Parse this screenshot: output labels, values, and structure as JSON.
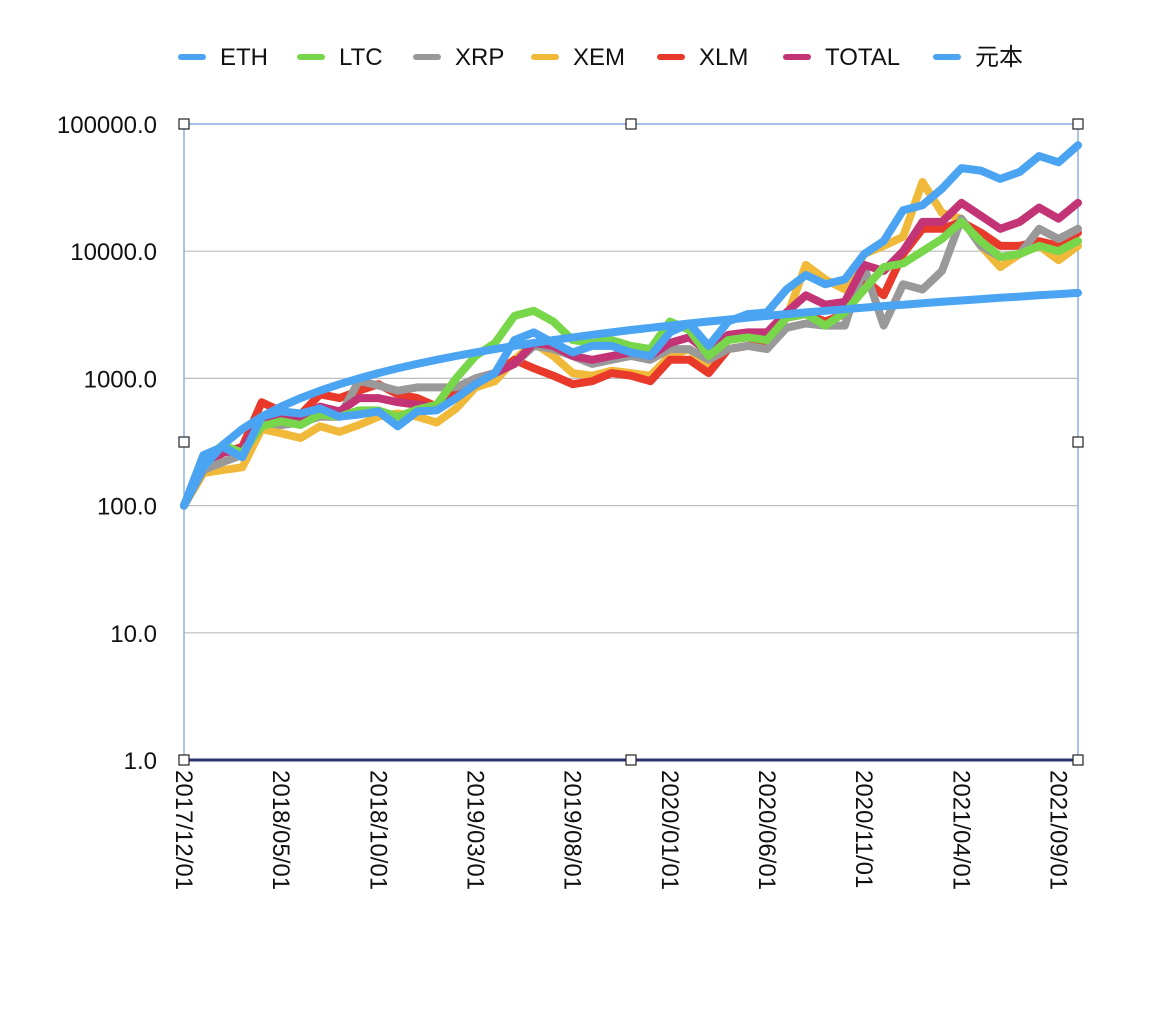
{
  "chart_data": {
    "type": "line",
    "title": "",
    "xlabel": "",
    "ylabel": "",
    "y_scale": "log",
    "ylim": [
      1,
      100000
    ],
    "y_ticks": [
      "1.0",
      "10.0",
      "100.0",
      "1000.0",
      "10000.0",
      "100000.0"
    ],
    "y_tick_values": [
      1,
      10,
      100,
      1000,
      10000,
      100000
    ],
    "grid": "horizontal",
    "legend_position": "top",
    "x_tick_labels": [
      "2017/12/01",
      "2018/05/01",
      "2018/10/01",
      "2019/03/01",
      "2019/08/01",
      "2020/01/01",
      "2020/06/01",
      "2020/11/01",
      "2021/04/01",
      "2021/09/01"
    ],
    "x_tick_indices": [
      0,
      5,
      10,
      15,
      20,
      25,
      30,
      35,
      40,
      45
    ],
    "x": [
      "2017/12",
      "2018/01",
      "2018/02",
      "2018/03",
      "2018/04",
      "2018/05",
      "2018/06",
      "2018/07",
      "2018/08",
      "2018/09",
      "2018/10",
      "2018/11",
      "2018/12",
      "2019/01",
      "2019/02",
      "2019/03",
      "2019/04",
      "2019/05",
      "2019/06",
      "2019/07",
      "2019/08",
      "2019/09",
      "2019/10",
      "2019/11",
      "2019/12",
      "2020/01",
      "2020/02",
      "2020/03",
      "2020/04",
      "2020/05",
      "2020/06",
      "2020/07",
      "2020/08",
      "2020/09",
      "2020/10",
      "2020/11",
      "2020/12",
      "2021/01",
      "2021/02",
      "2021/03",
      "2021/04",
      "2021/05",
      "2021/06",
      "2021/07",
      "2021/08",
      "2021/09",
      "2021/10"
    ],
    "series": [
      {
        "name": "XEM",
        "color": "#f0b93a",
        "values": [
          100,
          180,
          190,
          200,
          400,
          370,
          340,
          420,
          380,
          430,
          500,
          530,
          500,
          450,
          580,
          850,
          950,
          1400,
          1900,
          1500,
          1100,
          1050,
          1150,
          1100,
          1050,
          1500,
          1700,
          1200,
          1700,
          1800,
          1900,
          3000,
          7800,
          6000,
          5000,
          9500,
          11000,
          13000,
          35000,
          20000,
          18000,
          11000,
          7500,
          9500,
          11000,
          8500,
          11000
        ]
      },
      {
        "name": "XLM",
        "color": "#e8392b",
        "values": [
          100,
          200,
          260,
          290,
          650,
          550,
          520,
          750,
          700,
          800,
          900,
          750,
          700,
          600,
          800,
          1000,
          1100,
          1400,
          1200,
          1050,
          900,
          950,
          1100,
          1050,
          950,
          1400,
          1400,
          1100,
          1700,
          1800,
          2000,
          3000,
          3200,
          2800,
          3200,
          6000,
          4500,
          9500,
          15000,
          15000,
          17000,
          14000,
          11000,
          11000,
          12000,
          11000,
          14000
        ]
      },
      {
        "name": "XRP",
        "color": "#999999",
        "values": [
          100,
          190,
          220,
          250,
          450,
          430,
          450,
          500,
          500,
          960,
          880,
          800,
          850,
          850,
          850,
          1000,
          1100,
          1300,
          1800,
          1700,
          1500,
          1300,
          1400,
          1500,
          1400,
          1700,
          1700,
          1400,
          1700,
          1800,
          1700,
          2500,
          2700,
          2600,
          2600,
          7500,
          2600,
          5500,
          5000,
          7000,
          18000,
          11000,
          9000,
          9500,
          15000,
          12500,
          15000
        ]
      },
      {
        "name": "TOTAL",
        "color": "#c23476",
        "values": [
          100,
          220,
          260,
          280,
          500,
          500,
          480,
          600,
          550,
          700,
          700,
          650,
          620,
          600,
          700,
          900,
          1100,
          1300,
          1900,
          1800,
          1500,
          1400,
          1500,
          1600,
          1500,
          1900,
          2100,
          1600,
          2200,
          2300,
          2300,
          3300,
          4500,
          3800,
          4000,
          7800,
          7000,
          10000,
          17000,
          17000,
          24000,
          19000,
          15000,
          17000,
          22000,
          18000,
          24000
        ]
      },
      {
        "name": "LTC",
        "color": "#77d64a",
        "values": [
          100,
          230,
          300,
          260,
          420,
          460,
          430,
          520,
          500,
          560,
          560,
          500,
          570,
          620,
          1000,
          1500,
          1900,
          3100,
          3400,
          2800,
          2000,
          1900,
          2000,
          1800,
          1700,
          2800,
          2400,
          1500,
          2000,
          2100,
          2000,
          3000,
          3200,
          2600,
          3300,
          5000,
          7500,
          8000,
          10000,
          12500,
          17000,
          12000,
          9000,
          9500,
          11000,
          10000,
          12000
        ]
      },
      {
        "name": "ETH",
        "color": "#4aa4f2",
        "values": [
          100,
          250,
          290,
          240,
          500,
          550,
          530,
          580,
          500,
          520,
          550,
          420,
          550,
          560,
          700,
          900,
          1100,
          2000,
          2300,
          1900,
          1600,
          1800,
          1800,
          1600,
          1500,
          2300,
          2700,
          1800,
          2800,
          3200,
          3300,
          5000,
          6500,
          5500,
          6000,
          9500,
          12000,
          21000,
          23000,
          31000,
          45000,
          43000,
          37000,
          42000,
          56000,
          50000,
          68000
        ]
      },
      {
        "name": "元本",
        "color": "#4aa4f2",
        "values": [
          100,
          200,
          300,
          400,
          500,
          600,
          700,
          800,
          900,
          1000,
          1100,
          1200,
          1300,
          1400,
          1500,
          1600,
          1700,
          1800,
          1900,
          2000,
          2100,
          2200,
          2300,
          2400,
          2500,
          2600,
          2700,
          2800,
          2900,
          3000,
          3100,
          3200,
          3300,
          3400,
          3500,
          3600,
          3700,
          3800,
          3900,
          4000,
          4100,
          4200,
          4300,
          4400,
          4500,
          4600,
          4700
        ]
      }
    ],
    "legend": [
      {
        "name": "ETH",
        "color": "#4aa4f2"
      },
      {
        "name": "LTC",
        "color": "#77d64a"
      },
      {
        "name": "XRP",
        "color": "#999999"
      },
      {
        "name": "XEM",
        "color": "#f0b93a"
      },
      {
        "name": "XLM",
        "color": "#e8392b"
      },
      {
        "name": "TOTAL",
        "color": "#c23476"
      },
      {
        "name": "元本",
        "color": "#4aa4f2"
      }
    ]
  }
}
